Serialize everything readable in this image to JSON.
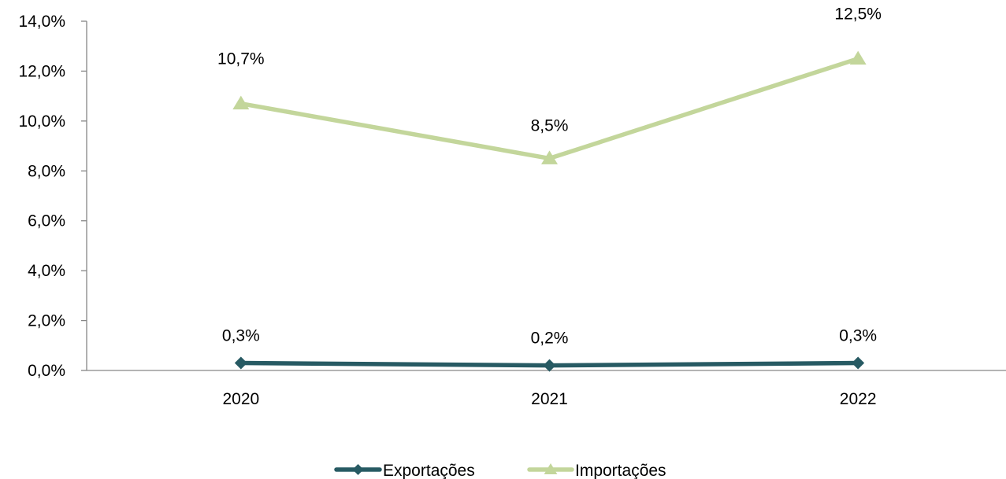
{
  "chart_data": {
    "type": "line",
    "categories": [
      "2020",
      "2021",
      "2022"
    ],
    "ylim": [
      0,
      14
    ],
    "y_ticks": [
      0,
      2,
      4,
      6,
      8,
      10,
      12,
      14
    ],
    "y_tick_labels": [
      "0,0%",
      "2,0%",
      "4,0%",
      "6,0%",
      "8,0%",
      "10,0%",
      "12,0%",
      "14,0%"
    ],
    "grid": false,
    "legend_position": "bottom",
    "series": [
      {
        "name": "Exportações",
        "values": [
          0.3,
          0.2,
          0.3
        ],
        "labels": [
          "0,3%",
          "0,2%",
          "0,3%"
        ],
        "color": "#275A63",
        "marker": "diamond"
      },
      {
        "name": "Importações",
        "values": [
          10.7,
          8.5,
          12.5
        ],
        "labels": [
          "10,7%",
          "8,5%",
          "12,5%"
        ],
        "color": "#C3D69B",
        "marker": "triangle"
      }
    ]
  }
}
